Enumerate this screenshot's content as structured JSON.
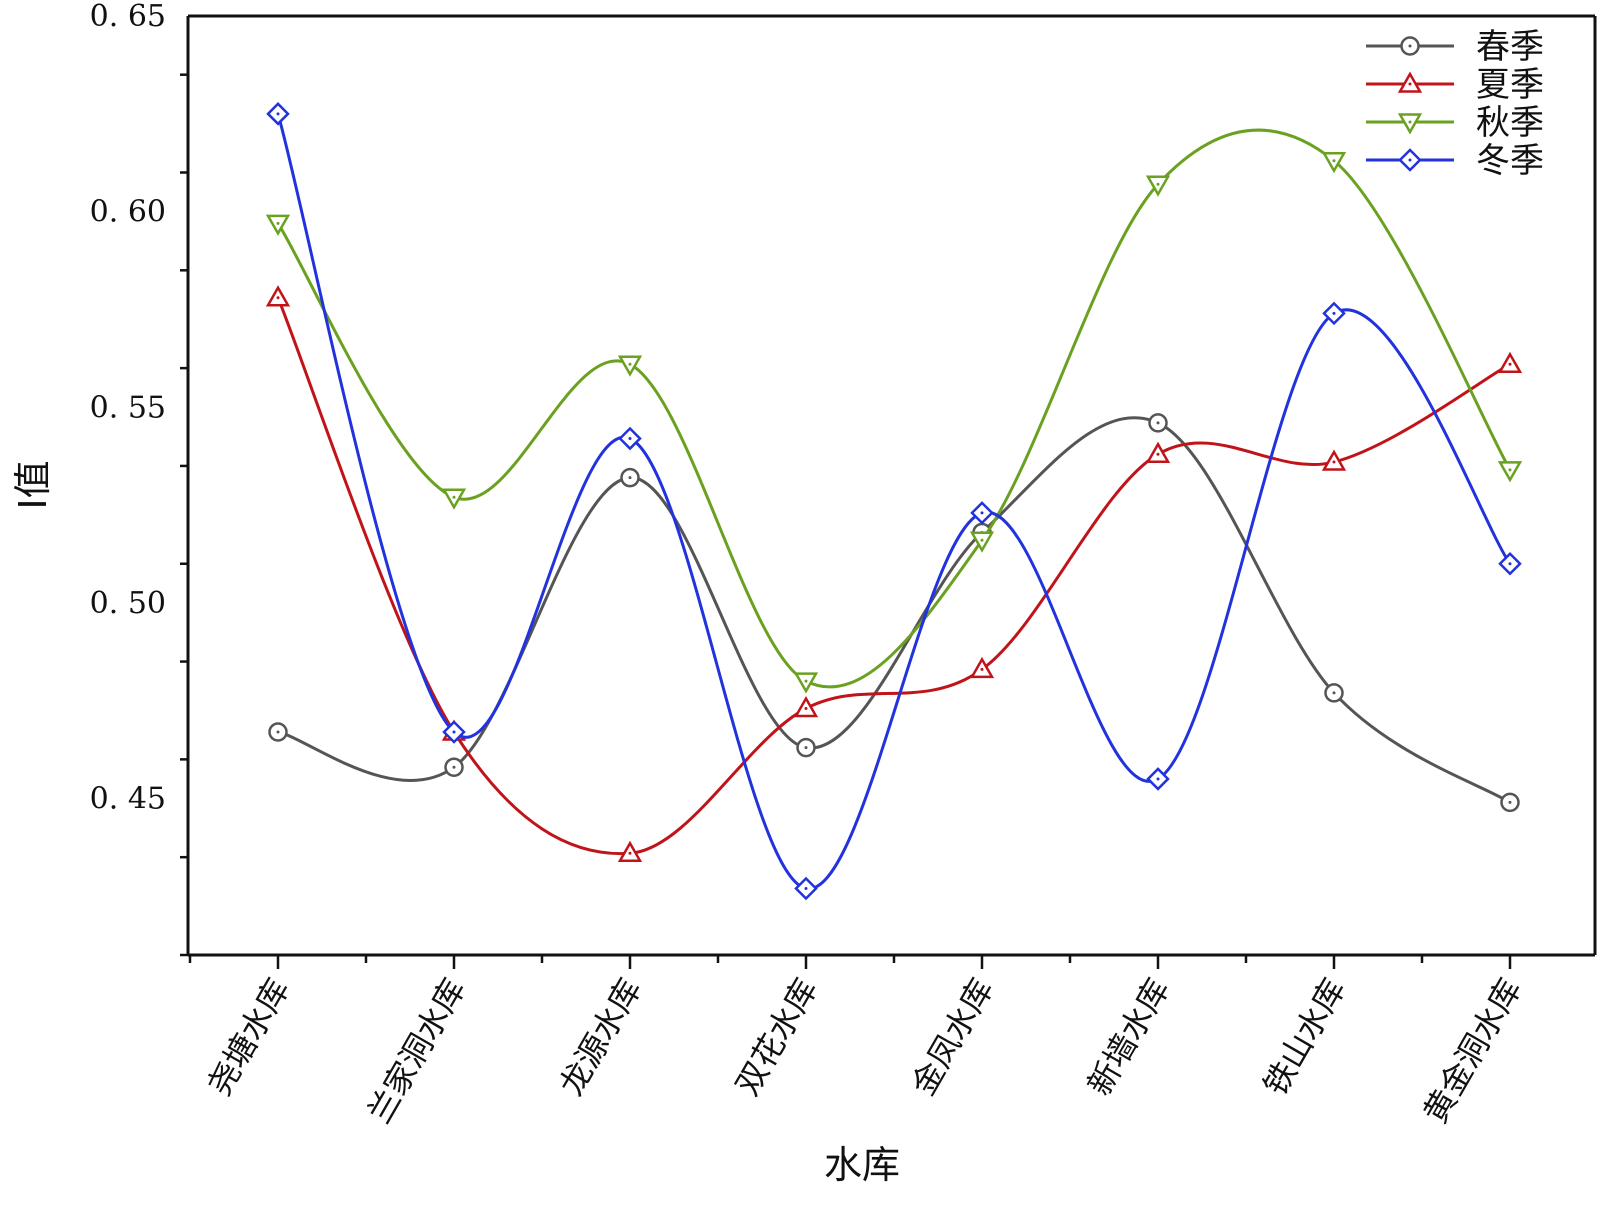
{
  "chart_data": {
    "type": "line",
    "xlabel": "水库",
    "ylabel": "I值",
    "categories": [
      "尧塘水库",
      "兰家洞水库",
      "龙源水库",
      "双花水库",
      "金凤水库",
      "新墙水库",
      "铁山水库",
      "黄金洞水库"
    ],
    "ylim": [
      0.41,
      0.65
    ],
    "yticks": [
      0.45,
      0.5,
      0.55,
      0.6,
      0.65
    ],
    "ytick_labels": [
      "0. 45",
      "0. 50",
      "0. 55",
      "0. 60",
      "0. 65"
    ],
    "grid": false,
    "legend_position": "top-right",
    "smooth": true,
    "series": [
      {
        "name": "春季",
        "color": "#555555",
        "marker": "circle",
        "values": [
          0.467,
          0.458,
          0.532,
          0.463,
          0.518,
          0.546,
          0.477,
          0.449
        ]
      },
      {
        "name": "夏季",
        "color": "#c0141a",
        "marker": "triangle-up",
        "values": [
          0.578,
          0.467,
          0.436,
          0.473,
          0.483,
          0.538,
          0.536,
          0.561
        ]
      },
      {
        "name": "秋季",
        "color": "#6aa121",
        "marker": "triangle-down",
        "values": [
          0.597,
          0.527,
          0.561,
          0.48,
          0.516,
          0.607,
          0.613,
          0.534
        ]
      },
      {
        "name": "冬季",
        "color": "#2233dd",
        "marker": "diamond",
        "values": [
          0.625,
          0.467,
          0.542,
          0.427,
          0.523,
          0.455,
          0.574,
          0.51
        ]
      }
    ]
  }
}
